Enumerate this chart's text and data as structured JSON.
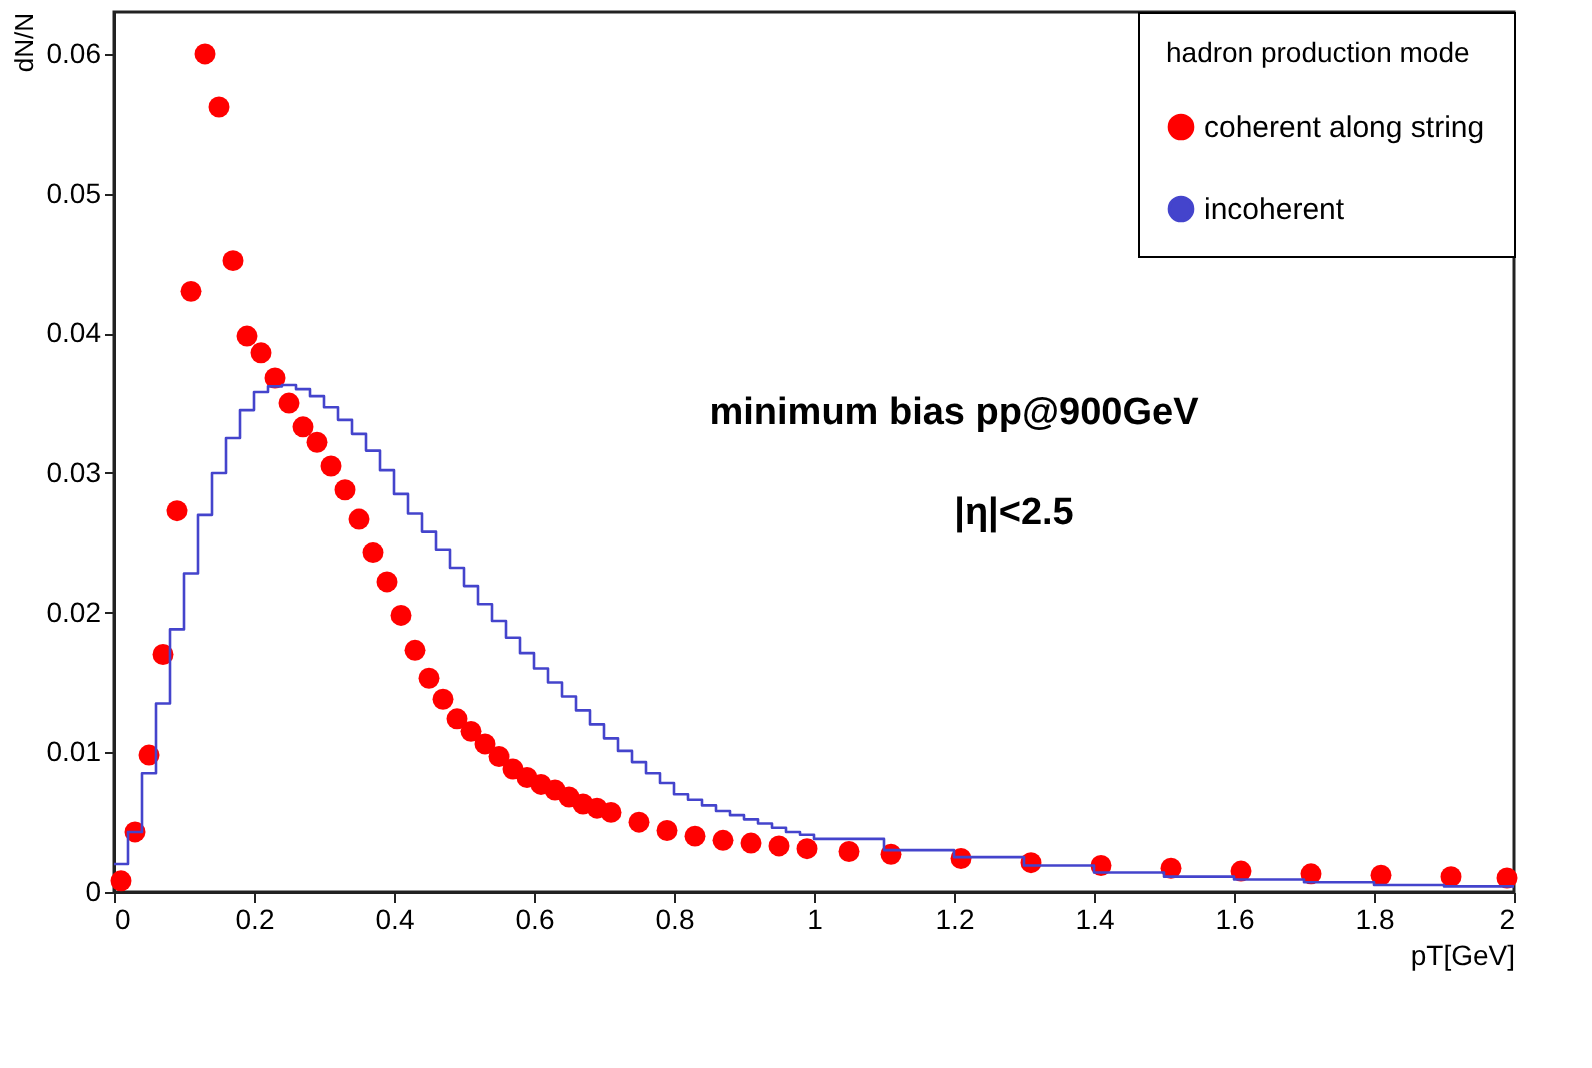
{
  "chart_data": {
    "type": "scatter",
    "xlabel": "pT[GeV]",
    "ylabel": "dN/N",
    "legend_title": "hadron production mode",
    "legend": "top right",
    "grid": false,
    "xlim": [
      0,
      2
    ],
    "ylim": [
      0,
      0.063
    ],
    "xticks": [
      0,
      0.2,
      0.4,
      0.6,
      0.8,
      1,
      1.2,
      1.4,
      1.6,
      1.8,
      2
    ],
    "yticks": [
      0,
      0.01,
      0.02,
      0.03,
      0.04,
      0.05,
      0.06
    ],
    "annotations": [
      "minimum bias pp@900GeV",
      "|η|<2.5"
    ],
    "series": [
      {
        "name": "coherent along string",
        "marker": "circle",
        "color": "#ff0000",
        "x": [
          0.01,
          0.03,
          0.05,
          0.07,
          0.09,
          0.11,
          0.13,
          0.15,
          0.17,
          0.19,
          0.21,
          0.23,
          0.25,
          0.27,
          0.29,
          0.31,
          0.33,
          0.35,
          0.37,
          0.39,
          0.41,
          0.43,
          0.45,
          0.47,
          0.49,
          0.51,
          0.53,
          0.55,
          0.57,
          0.59,
          0.61,
          0.63,
          0.65,
          0.67,
          0.69,
          0.71,
          0.75,
          0.79,
          0.83,
          0.87,
          0.91,
          0.95,
          0.99,
          1.05,
          1.11,
          1.21,
          1.31,
          1.41,
          1.51,
          1.61,
          1.71,
          1.81,
          1.91,
          1.99
        ],
        "values": [
          0.0008,
          0.0043,
          0.0098,
          0.017,
          0.0273,
          0.043,
          0.06,
          0.0562,
          0.0452,
          0.0398,
          0.0386,
          0.0368,
          0.035,
          0.0333,
          0.0322,
          0.0305,
          0.0288,
          0.0267,
          0.0243,
          0.0222,
          0.0198,
          0.0173,
          0.0153,
          0.0138,
          0.0124,
          0.0115,
          0.0106,
          0.0097,
          0.0088,
          0.0082,
          0.0077,
          0.0073,
          0.0068,
          0.0063,
          0.006,
          0.0057,
          0.005,
          0.0044,
          0.004,
          0.0037,
          0.0035,
          0.0033,
          0.0031,
          0.0029,
          0.0027,
          0.0024,
          0.0021,
          0.0019,
          0.0017,
          0.0015,
          0.0013,
          0.0012,
          0.0011,
          0.001
        ]
      },
      {
        "name": "incoherent",
        "type": "step",
        "color": "#4444cc",
        "x": [
          0,
          0.02,
          0.04,
          0.06,
          0.08,
          0.1,
          0.12,
          0.14,
          0.16,
          0.18,
          0.2,
          0.22,
          0.24,
          0.26,
          0.28,
          0.3,
          0.32,
          0.34,
          0.36,
          0.38,
          0.4,
          0.42,
          0.44,
          0.46,
          0.48,
          0.5,
          0.52,
          0.54,
          0.56,
          0.58,
          0.6,
          0.62,
          0.64,
          0.66,
          0.68,
          0.7,
          0.72,
          0.74,
          0.76,
          0.78,
          0.8,
          0.82,
          0.84,
          0.86,
          0.88,
          0.9,
          0.92,
          0.94,
          0.96,
          0.98,
          1.0,
          1.1,
          1.2,
          1.3,
          1.4,
          1.5,
          1.6,
          1.7,
          1.8,
          1.9,
          2.0
        ],
        "values": [
          0.002,
          0.0043,
          0.0085,
          0.0135,
          0.0188,
          0.0228,
          0.027,
          0.03,
          0.0325,
          0.0345,
          0.0358,
          0.0362,
          0.0363,
          0.036,
          0.0355,
          0.0347,
          0.0338,
          0.0328,
          0.0316,
          0.0302,
          0.0285,
          0.0271,
          0.0258,
          0.0245,
          0.0232,
          0.0219,
          0.0206,
          0.0194,
          0.0182,
          0.0171,
          0.016,
          0.015,
          0.014,
          0.013,
          0.012,
          0.011,
          0.0101,
          0.0093,
          0.0085,
          0.0078,
          0.007,
          0.0066,
          0.0062,
          0.0058,
          0.0055,
          0.0052,
          0.0049,
          0.0046,
          0.0043,
          0.0041,
          0.0038,
          0.003,
          0.0025,
          0.0019,
          0.0014,
          0.0011,
          0.0009,
          0.0007,
          0.0005,
          0.0004,
          0.0004
        ]
      }
    ]
  }
}
